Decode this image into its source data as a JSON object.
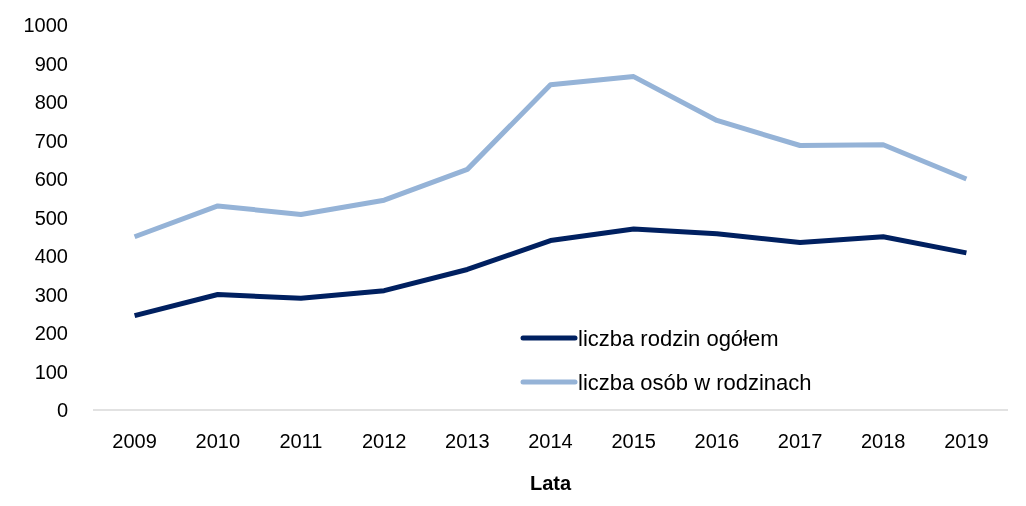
{
  "chart_data": {
    "type": "line",
    "xlabel": "Lata",
    "categories": [
      "2009",
      "2010",
      "2011",
      "2012",
      "2013",
      "2014",
      "2015",
      "2016",
      "2017",
      "2018",
      "2019"
    ],
    "series": [
      {
        "name": "liczba rodzin ogółem",
        "color": "#002060",
        "values": [
          245,
          300,
          290,
          310,
          365,
          440,
          470,
          458,
          435,
          450,
          408
        ]
      },
      {
        "name": "liczba osób w rodzinach",
        "color": "#95b3d7",
        "values": [
          450,
          530,
          508,
          545,
          625,
          845,
          866,
          752,
          687,
          689,
          600
        ]
      }
    ],
    "ylim": [
      0,
      1000
    ],
    "yticks": [
      0,
      100,
      200,
      300,
      400,
      500,
      600,
      700,
      800,
      900,
      1000
    ],
    "grid": false,
    "legend": "bottom right",
    "marker": "none",
    "line_style": "solid"
  }
}
